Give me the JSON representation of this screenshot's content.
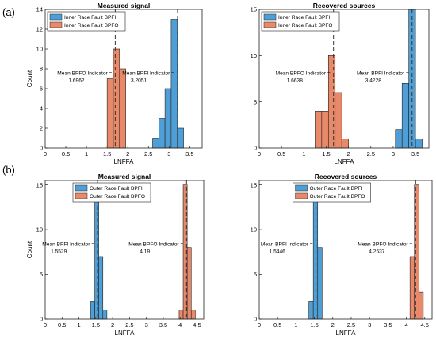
{
  "panel_labels": [
    "(a)",
    "(b)"
  ],
  "colors": {
    "bpfi": "#4f9fd6",
    "bpfo": "#e8896a",
    "edge": "#222222",
    "mean_line": "#333333"
  },
  "chart_data": [
    {
      "type": "bar",
      "panel": "(a)",
      "title": "Measured signal",
      "xlabel": "LNFFA",
      "ylabel": "Count",
      "xlim": [
        0,
        3.8
      ],
      "ylim": [
        0,
        14
      ],
      "xticks": [
        "0",
        "0.5",
        "1",
        "1.5",
        "2",
        "2.5",
        "3",
        "3.5"
      ],
      "xtick_values": [
        0,
        0.5,
        1,
        1.5,
        2,
        2.5,
        3,
        3.5
      ],
      "yticks": [
        "0",
        "2",
        "4",
        "6",
        "8",
        "10",
        "12",
        "14"
      ],
      "ytick_values": [
        0,
        2,
        4,
        6,
        8,
        10,
        12,
        14
      ],
      "legend": "top-left",
      "series": [
        {
          "name": "Inner Race Fault BPFI",
          "color": "bpfi",
          "bin_width": 0.15,
          "bins": [
            [
              2.6,
              1
            ],
            [
              2.75,
              3
            ],
            [
              2.9,
              6
            ],
            [
              3.05,
              13
            ],
            [
              3.2,
              2
            ]
          ]
        },
        {
          "name": "Inner Race Fault BPFO",
          "color": "bpfo",
          "bin_width": 0.15,
          "bins": [
            [
              1.5,
              7
            ],
            [
              1.65,
              10
            ],
            [
              1.8,
              8
            ]
          ]
        }
      ],
      "annotations": [
        {
          "label": "Mean BPFO Indicator =",
          "value_text": "1.6962",
          "x": 1.6962,
          "side": "left"
        },
        {
          "label": "Mean BPFI Indicator =",
          "value_text": "3.2051",
          "x": 3.2051,
          "side": "left"
        }
      ]
    },
    {
      "type": "bar",
      "panel": "(a)",
      "title": "Recovered sources",
      "xlabel": "LNFFA",
      "ylabel": "",
      "xlim": [
        0,
        3.8
      ],
      "ylim": [
        0,
        15
      ],
      "xticks": [
        "0",
        "0.5",
        "1",
        "1.5",
        "2",
        "2.5",
        "3",
        "3.5"
      ],
      "xtick_values": [
        0,
        0.5,
        1,
        1.5,
        2,
        2.5,
        3,
        3.5
      ],
      "yticks": [
        "0",
        "5",
        "10",
        "15"
      ],
      "ytick_values": [
        0,
        5,
        10,
        15
      ],
      "legend": "top-left",
      "series": [
        {
          "name": "Inner Race Fault BPFI",
          "color": "bpfi",
          "bin_width": 0.15,
          "bins": [
            [
              3.05,
              2
            ],
            [
              3.2,
              7
            ],
            [
              3.35,
              15
            ],
            [
              3.5,
              1
            ]
          ]
        },
        {
          "name": "Inner Race Fault BPFO",
          "color": "bpfo",
          "bin_width": 0.15,
          "bins": [
            [
              1.25,
              4
            ],
            [
              1.4,
              4
            ],
            [
              1.55,
              10
            ],
            [
              1.7,
              6
            ],
            [
              1.85,
              1
            ]
          ]
        }
      ],
      "annotations": [
        {
          "label": "Mean BPFO Indicator =",
          "value_text": "1.6638",
          "x": 1.6638,
          "side": "left"
        },
        {
          "label": "Mean BPFI Indicator =",
          "value_text": "3.4228",
          "x": 3.4228,
          "side": "left"
        }
      ]
    },
    {
      "type": "bar",
      "panel": "(b)",
      "title": "Measured signal",
      "xlabel": "LNFFA",
      "ylabel": "Count",
      "xlim": [
        0,
        4.7
      ],
      "ylim": [
        0,
        15.5
      ],
      "xticks": [
        "0",
        "0.5",
        "1",
        "1.5",
        "2",
        "2.5",
        "3",
        "3.5",
        "4",
        "4.5"
      ],
      "xtick_values": [
        0,
        0.5,
        1,
        1.5,
        2,
        2.5,
        3,
        3.5,
        4,
        4.5
      ],
      "yticks": [
        "0",
        "5",
        "10",
        "15"
      ],
      "ytick_values": [
        0,
        5,
        10,
        15
      ],
      "legend": "top-center",
      "series": [
        {
          "name": "Outer Race Fault BPFI",
          "color": "bpfi",
          "bin_width": 0.12,
          "bins": [
            [
              1.35,
              2
            ],
            [
              1.47,
              15
            ],
            [
              1.59,
              7
            ],
            [
              1.71,
              1
            ]
          ]
        },
        {
          "name": "Outer Race Fault BPFO",
          "color": "bpfo",
          "bin_width": 0.12,
          "bins": [
            [
              3.97,
              1
            ],
            [
              4.09,
              15
            ],
            [
              4.21,
              8
            ],
            [
              4.33,
              1
            ]
          ]
        }
      ],
      "annotations": [
        {
          "label": "Mean BPFI Indicator =",
          "value_text": "1.5529",
          "x": 1.5529,
          "side": "left"
        },
        {
          "label": "Mean BPFO Indicator =",
          "value_text": "4.19",
          "x": 4.19,
          "side": "left"
        }
      ]
    },
    {
      "type": "bar",
      "panel": "(b)",
      "title": "Recovered sources",
      "xlabel": "LNFFA",
      "ylabel": "",
      "xlim": [
        0,
        4.7
      ],
      "ylim": [
        0,
        15.5
      ],
      "xticks": [
        "0",
        "0.5",
        "1",
        "1.5",
        "2",
        "2.5",
        "3",
        "3.5",
        "4",
        "4.5"
      ],
      "xtick_values": [
        0,
        0.5,
        1,
        1.5,
        2,
        2.5,
        3,
        3.5,
        4,
        4.5
      ],
      "yticks": [
        "0",
        "5",
        "10",
        "15"
      ],
      "ytick_values": [
        0,
        5,
        10,
        15
      ],
      "legend": "top-center",
      "series": [
        {
          "name": "Outer Race Fault BPFI",
          "color": "bpfi",
          "bin_width": 0.12,
          "bins": [
            [
              1.35,
              2
            ],
            [
              1.47,
              15
            ],
            [
              1.59,
              8
            ]
          ]
        },
        {
          "name": "Outer Race Fault BPFO",
          "color": "bpfo",
          "bin_width": 0.12,
          "bins": [
            [
              4.1,
              7
            ],
            [
              4.22,
              15
            ],
            [
              4.34,
              3
            ]
          ]
        }
      ],
      "annotations": [
        {
          "label": "Mean BPFI Indicator =",
          "value_text": "1.5446",
          "x": 1.5446,
          "side": "left"
        },
        {
          "label": "Mean BPFO Indicator =",
          "value_text": "4.2537",
          "x": 4.2537,
          "side": "left"
        }
      ]
    }
  ]
}
